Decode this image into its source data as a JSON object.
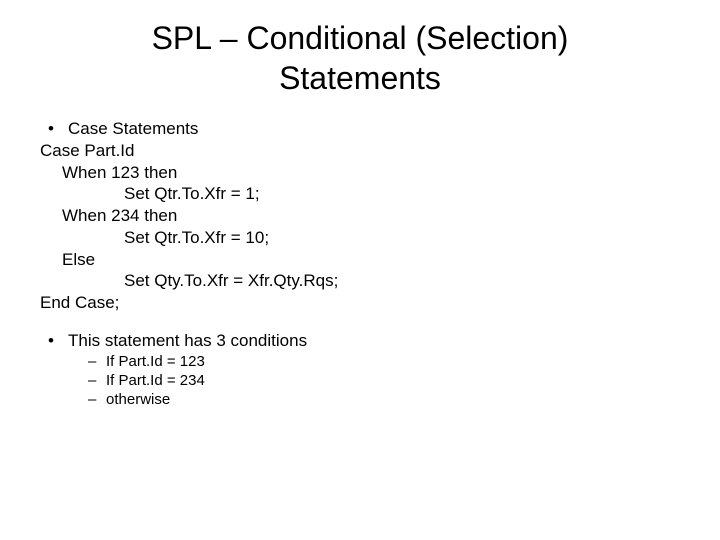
{
  "slide": {
    "title": "SPL – Conditional (Selection) Statements",
    "title_fontsize": 32,
    "body_fontsize": 17,
    "sub_fontsize": 15,
    "text_color": "#000000",
    "background_color": "#ffffff",
    "bullet1": "Case Statements",
    "code": {
      "l1": "Case Part.Id",
      "l2": "When 123 then",
      "l3": "Set Qtr.To.Xfr = 1;",
      "l4": "When 234 then",
      "l5": "Set Qtr.To.Xfr = 10;",
      "l6": "Else",
      "l7": "Set Qty.To.Xfr = Xfr.Qty.Rqs;",
      "l8": "End Case;"
    },
    "bullet2": "This statement has 3 conditions",
    "subs": {
      "s1": "If Part.Id = 123",
      "s2": "If Part.Id = 234",
      "s3": "otherwise"
    }
  }
}
